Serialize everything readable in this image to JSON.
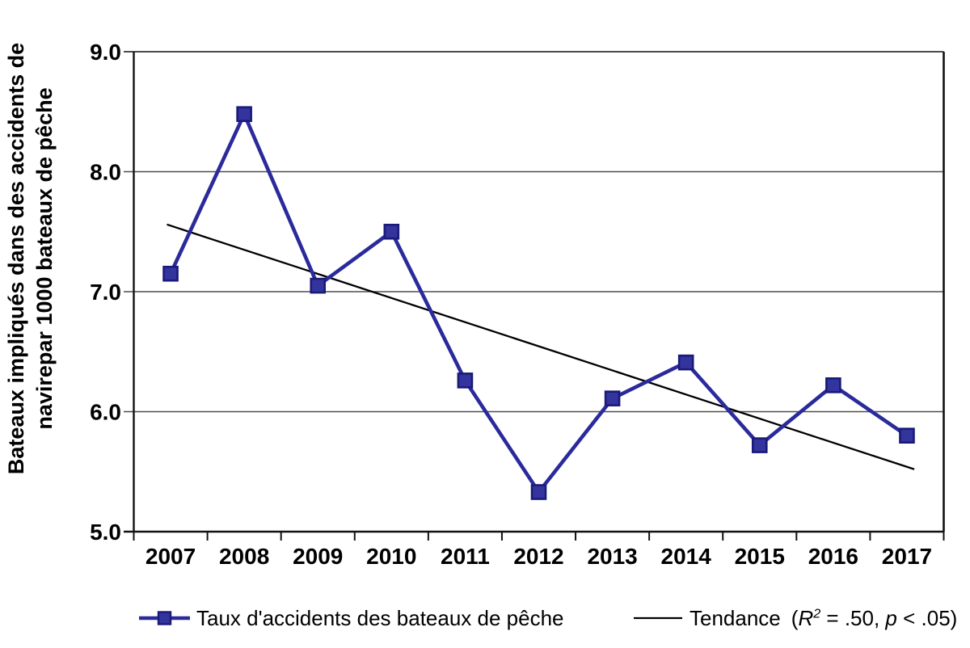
{
  "figure": {
    "background": "#ffffff"
  },
  "y_axis_title": {
    "line1": "Bateaux impliqués dans des accidents de",
    "line2": "navirepar 1000 bateaux de pêche"
  },
  "legend": {
    "series": {
      "label": "Taux d'accidents des bateaux de pêche"
    },
    "trend": {
      "label": "Tendance",
      "stats_text": "(R² = .50, p < .05)",
      "stats_parts": [
        {
          "text": "(",
          "style": "normal"
        },
        {
          "text": "R",
          "style": "italic"
        },
        {
          "text": "2",
          "style": "sup"
        },
        {
          "text": " = .50, ",
          "style": "normal"
        },
        {
          "text": "p",
          "style": "italic"
        },
        {
          "text": " < .05)",
          "style": "normal"
        }
      ]
    }
  },
  "colors": {
    "series_line": "#2A2A9C",
    "marker_fill": "#34349E",
    "marker_stroke": "#1A1A78",
    "trend_line": "#000000",
    "gridline": "#4D4D4D",
    "axis": "#111111",
    "top_border": "#333333",
    "text": "#000000",
    "background": "#FFFFFF"
  },
  "chart_data": {
    "type": "line",
    "title": "",
    "xlabel": "",
    "ylabel": "Bateaux impliqués dans des accidents de navirepar 1000 bateaux de pêche",
    "categories": [
      "2007",
      "2008",
      "2009",
      "2010",
      "2011",
      "2012",
      "2013",
      "2014",
      "2015",
      "2016",
      "2017"
    ],
    "series": [
      {
        "name": "Taux d'accidents des bateaux de pêche",
        "marker": "square",
        "values": [
          7.15,
          8.48,
          7.05,
          7.5,
          6.26,
          5.33,
          6.11,
          6.41,
          5.72,
          6.22,
          5.8
        ]
      }
    ],
    "trend": {
      "name": "Tendance",
      "r2": 0.5,
      "p": "< .05",
      "start": {
        "year": 2006.95,
        "value": 7.56
      },
      "end": {
        "year": 2017.1,
        "value": 5.52
      }
    },
    "ylim": [
      5.0,
      9.0
    ],
    "ytick_step": 1.0,
    "ytick_labels": [
      "9.0",
      "8.0",
      "7.0",
      "6.0",
      "5.0"
    ],
    "grid": "horizontal-major",
    "legend_position": "bottom"
  }
}
